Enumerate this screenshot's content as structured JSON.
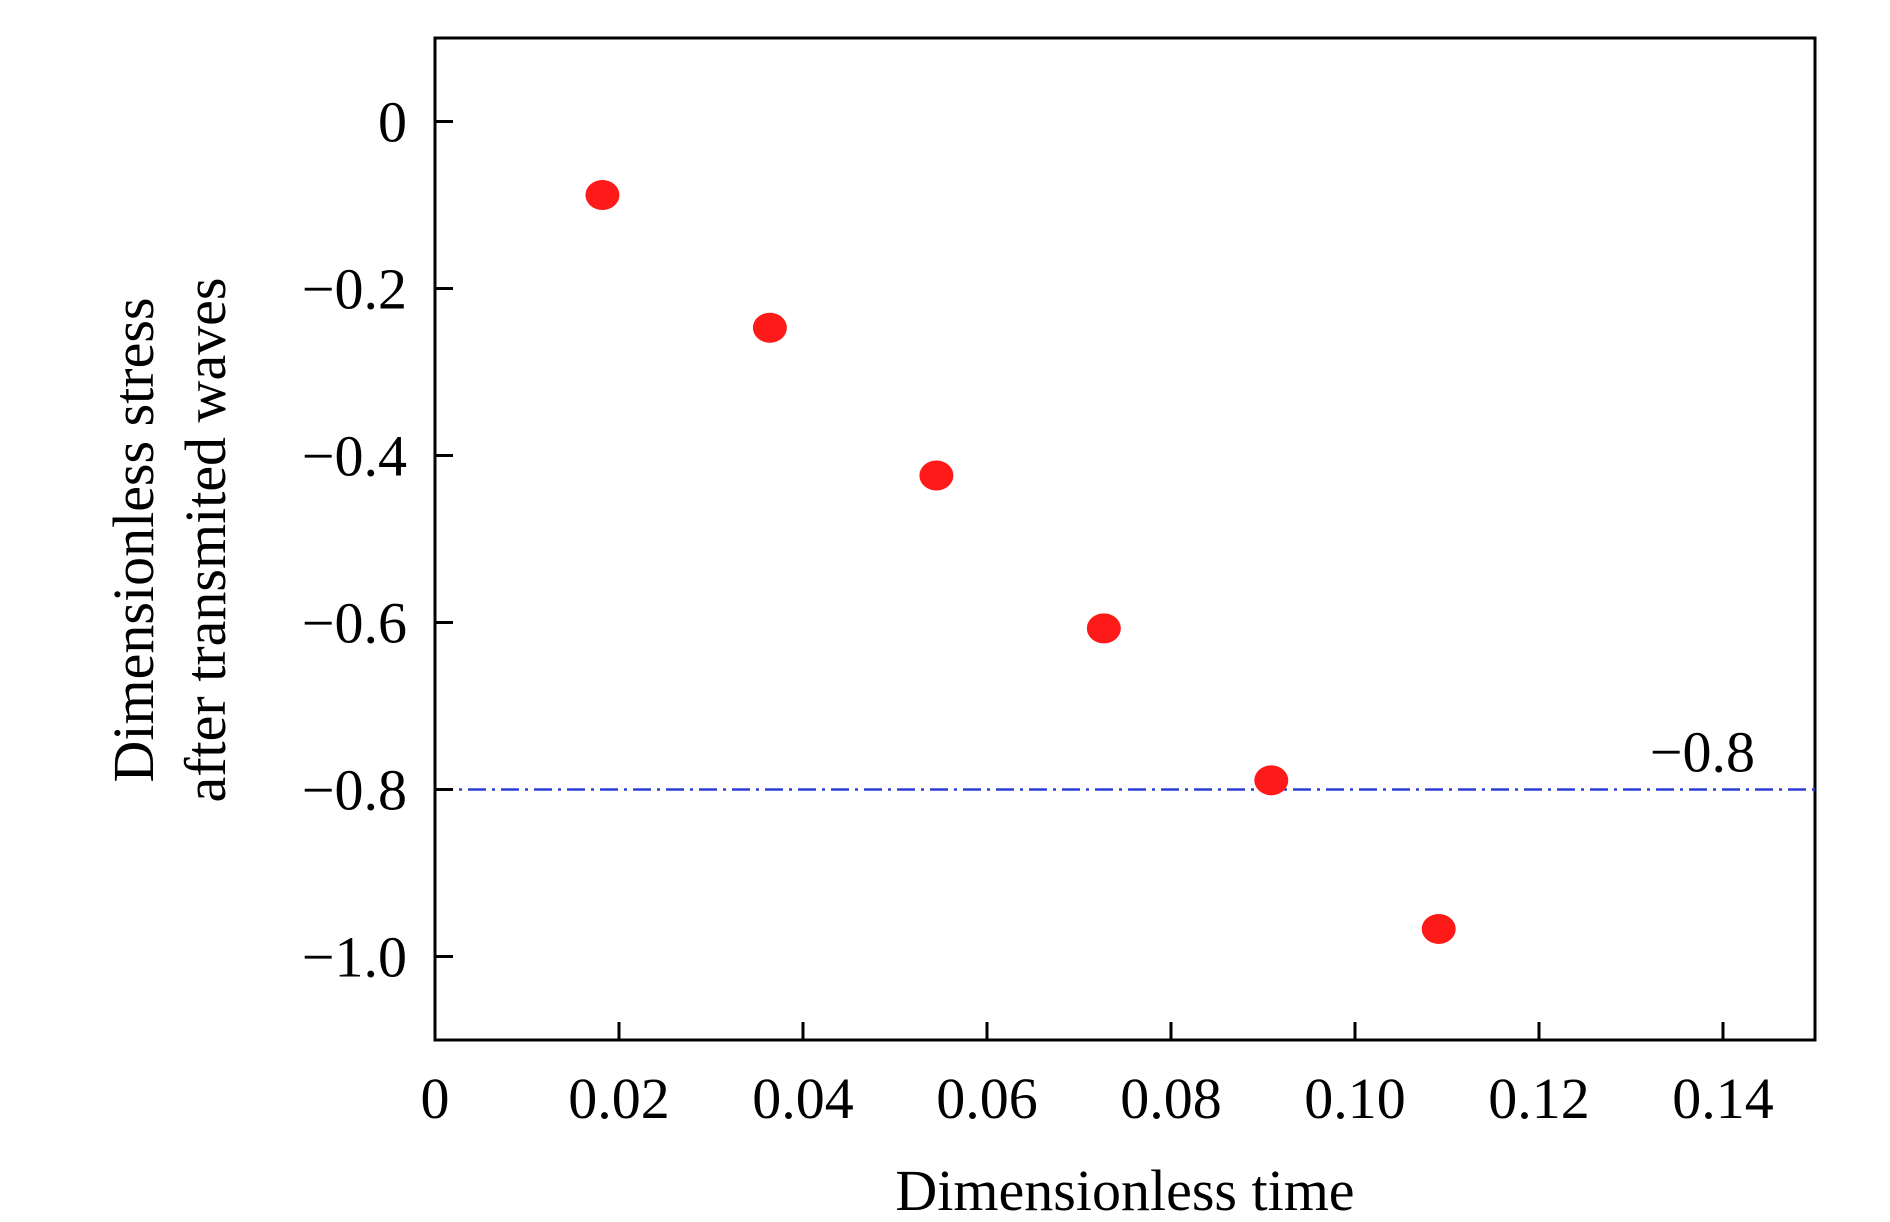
{
  "chart_data": {
    "type": "scatter",
    "title": "",
    "xlabel": "Dimensionless time",
    "ylabel_lines": [
      "Dimensionless stress",
      "after transmited waves"
    ],
    "xlim": [
      0,
      0.15
    ],
    "ylim": [
      -1.1,
      0.1
    ],
    "x_ticks": [
      0,
      0.02,
      0.04,
      0.06,
      0.08,
      0.1,
      0.12,
      0.14
    ],
    "x_tick_labels": [
      "0",
      "0.02",
      "0.04",
      "0.06",
      "0.08",
      "0.10",
      "0.12",
      "0.14"
    ],
    "y_ticks": [
      0,
      -0.2,
      -0.4,
      -0.6,
      -0.8,
      -1.0
    ],
    "y_tick_labels": [
      "0",
      "−0.2",
      "−0.4",
      "−0.6",
      "−0.8",
      "−1.0"
    ],
    "grid": false,
    "series": [
      {
        "color": "#ff1a1a",
        "marker": "circle",
        "points": [
          {
            "x": 0.0182,
            "y": -0.088
          },
          {
            "x": 0.0364,
            "y": -0.247
          },
          {
            "x": 0.0545,
            "y": -0.424
          },
          {
            "x": 0.0727,
            "y": -0.607
          },
          {
            "x": 0.0909,
            "y": -0.789
          },
          {
            "x": 0.1091,
            "y": -0.967
          }
        ]
      }
    ],
    "reference_line": {
      "y": -0.8,
      "label": "−0.8",
      "color": "#2b3fd6",
      "style": "dash-dot"
    }
  }
}
